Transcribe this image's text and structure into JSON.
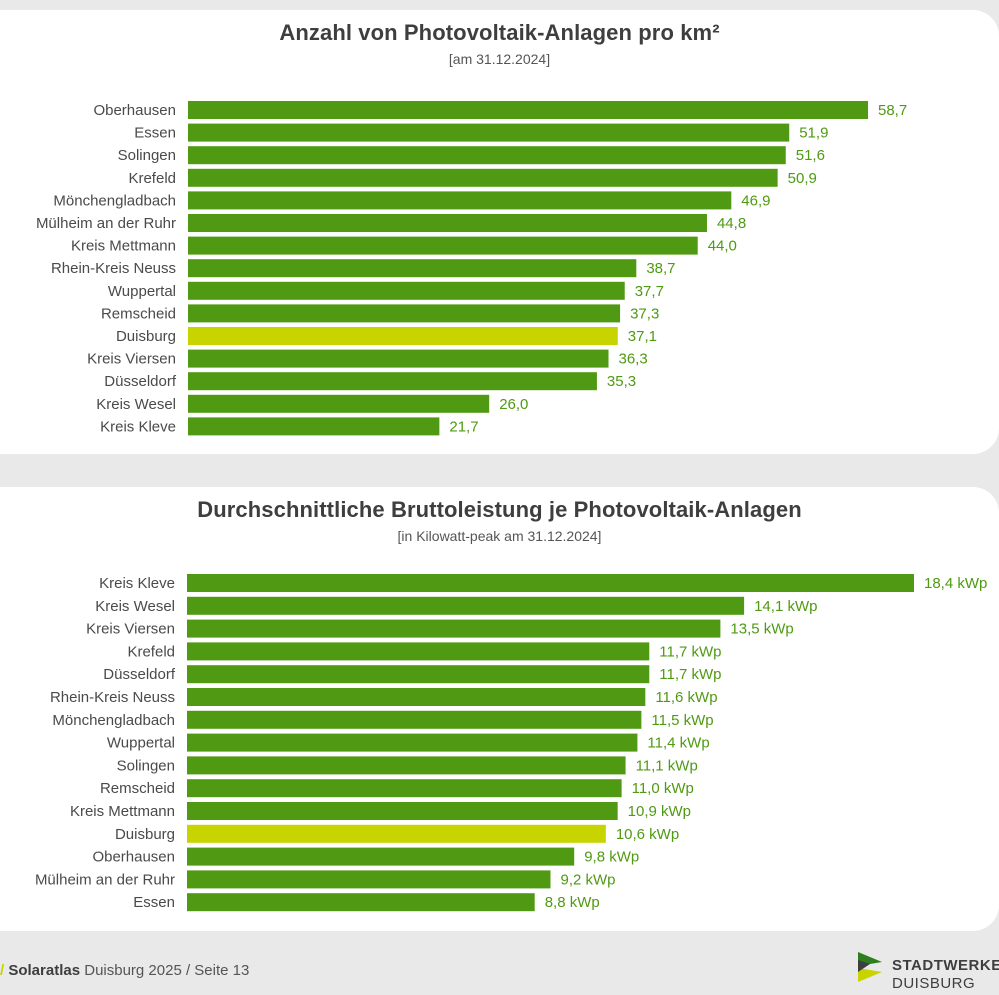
{
  "colors": {
    "bar": "#4f9a12",
    "highlight_bar": "#c8d400",
    "value_text": "#4f9a12"
  },
  "chart_data": [
    {
      "type": "bar",
      "orientation": "horizontal",
      "title": "Anzahl von Photovoltaik-Anlagen pro km²",
      "subtitle": "[am 31.12.2024]",
      "categories": [
        "Oberhausen",
        "Essen",
        "Solingen",
        "Krefeld",
        "Mönchengladbach",
        "Mülheim an der Ruhr",
        "Kreis Mettmann",
        "Rhein-Kreis Neuss",
        "Wuppertal",
        "Remscheid",
        "Duisburg",
        "Kreis Viersen",
        "Düsseldorf",
        "Kreis Wesel",
        "Kreis Kleve"
      ],
      "values": [
        58.7,
        51.9,
        51.6,
        50.9,
        46.9,
        44.8,
        44.0,
        38.7,
        37.7,
        37.3,
        37.1,
        36.3,
        35.3,
        26.0,
        21.7
      ],
      "value_labels": [
        "58,7",
        "51,9",
        "51,6",
        "50,9",
        "46,9",
        "44,8",
        "44,0",
        "38,7",
        "37,7",
        "37,3",
        "37,1",
        "36,3",
        "35,3",
        "26,0",
        "21,7"
      ],
      "highlight": "Duisburg",
      "xlim": [
        0,
        58.7
      ],
      "grid": false,
      "legend": "none"
    },
    {
      "type": "bar",
      "orientation": "horizontal",
      "title": "Durchschnittliche Bruttoleistung je Photovoltaik-Anlagen",
      "subtitle": "[in Kilowatt-peak am 31.12.2024]",
      "categories": [
        "Kreis Kleve",
        "Kreis Wesel",
        "Kreis Viersen",
        "Krefeld",
        "Düsseldorf",
        "Rhein-Kreis Neuss",
        "Mönchengladbach",
        "Wuppertal",
        "Solingen",
        "Remscheid",
        "Kreis Mettmann",
        "Duisburg",
        "Oberhausen",
        "Mülheim an der Ruhr",
        "Essen"
      ],
      "values": [
        18.4,
        14.1,
        13.5,
        11.7,
        11.7,
        11.6,
        11.5,
        11.4,
        11.1,
        11.0,
        10.9,
        10.6,
        9.8,
        9.2,
        8.8
      ],
      "value_labels": [
        "18,4 kWp",
        "14,1 kWp",
        "13,5 kWp",
        "11,7 kWp",
        "11,7 kWp",
        "11,6 kWp",
        "11,5 kWp",
        "11,4 kWp",
        "11,1 kWp",
        "11,0 kWp",
        "10,9 kWp",
        "10,6 kWp",
        "9,8 kWp",
        "9,2 kWp",
        "8,8 kWp"
      ],
      "highlight": "Duisburg",
      "xlim": [
        0,
        18.4
      ],
      "grid": false,
      "legend": "none"
    }
  ],
  "footer": {
    "slash": "/",
    "brand": "Solaratlas",
    "rest": " Duisburg 2025 / Seite 13"
  },
  "logo": {
    "line1": "STADTWERKE",
    "line2": "DUISBURG",
    "icon": "stadtwerke-logo-icon"
  }
}
